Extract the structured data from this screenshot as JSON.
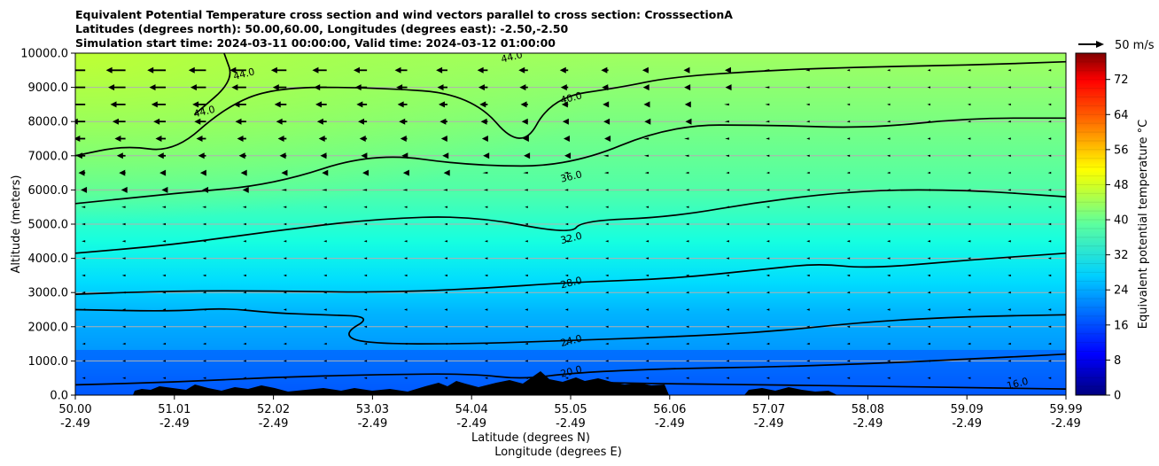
{
  "title_lines": [
    "Equivalent Potential Temperature cross section and wind vectors parallel to cross section: CrosssectionA",
    "Latitudes (degrees north): 50.00,60.00, Longitudes (degrees east): -2.50,-2.50",
    "Simulation start time: 2024-03-11 00:00:00, Valid time: 2024-03-12 01:00:00"
  ],
  "chart_data": {
    "type": "heatmap",
    "subtype": "filled contour cross section with contour lines and quiver vectors",
    "title": "Equivalent Potential Temperature cross section and wind vectors parallel to cross section: CrosssectionA",
    "xlabel": "Latitude (degrees N)",
    "xlabel2": "Longitude (degrees E)",
    "ylabel": "Altitude (meters)",
    "xlim": [
      50.0,
      59.99
    ],
    "ylim": [
      0,
      10000
    ],
    "grid": "horizontal",
    "x_ticks": [
      {
        "lat": "50.00",
        "lon": "-2.49"
      },
      {
        "lat": "51.01",
        "lon": "-2.49"
      },
      {
        "lat": "52.02",
        "lon": "-2.49"
      },
      {
        "lat": "53.03",
        "lon": "-2.49"
      },
      {
        "lat": "54.04",
        "lon": "-2.49"
      },
      {
        "lat": "55.05",
        "lon": "-2.49"
      },
      {
        "lat": "56.06",
        "lon": "-2.49"
      },
      {
        "lat": "57.07",
        "lon": "-2.49"
      },
      {
        "lat": "58.08",
        "lon": "-2.49"
      },
      {
        "lat": "59.09",
        "lon": "-2.49"
      },
      {
        "lat": "59.99",
        "lon": "-2.49"
      }
    ],
    "y_ticks": [
      "0.0",
      "1000.0",
      "2000.0",
      "3000.0",
      "4000.0",
      "5000.0",
      "6000.0",
      "7000.0",
      "8000.0",
      "9000.0",
      "10000.0"
    ],
    "colorbar": {
      "label": "Equivalent potential temperature $^\\circ$C",
      "ticks": [
        "0",
        "8",
        "16",
        "24",
        "32",
        "40",
        "48",
        "56",
        "64",
        "72"
      ],
      "range": [
        0,
        78
      ],
      "colormap": "jet"
    },
    "quiver_key": {
      "label": "50 m/s",
      "placement": "top-right"
    },
    "contours": [
      {
        "level": 16,
        "label": "16.0",
        "points": [
          [
            55.1,
            380
          ],
          [
            56.0,
            330
          ],
          [
            57.0,
            300
          ],
          [
            58.0,
            260
          ],
          [
            59.0,
            220
          ],
          [
            59.99,
            180
          ]
        ]
      },
      {
        "level": 20,
        "label": "20.0",
        "points": [
          [
            50.0,
            300
          ],
          [
            51.0,
            380
          ],
          [
            52.0,
            520
          ],
          [
            53.0,
            600
          ],
          [
            54.0,
            630
          ],
          [
            54.5,
            460
          ],
          [
            55.0,
            650
          ],
          [
            56.0,
            780
          ],
          [
            57.0,
            820
          ],
          [
            58.0,
            920
          ],
          [
            59.0,
            1050
          ],
          [
            59.99,
            1200
          ]
        ]
      },
      {
        "level": 24,
        "label": "24.0",
        "points": [
          [
            50.0,
            2500
          ],
          [
            51.0,
            2450
          ],
          [
            51.5,
            2550
          ],
          [
            52.0,
            2400
          ],
          [
            52.5,
            2350
          ],
          [
            53.0,
            2300
          ],
          [
            52.7,
            1800
          ],
          [
            52.9,
            1500
          ],
          [
            54.0,
            1500
          ],
          [
            55.0,
            1600
          ],
          [
            56.0,
            1700
          ],
          [
            57.0,
            1850
          ],
          [
            58.0,
            2150
          ],
          [
            59.0,
            2300
          ],
          [
            59.99,
            2350
          ]
        ]
      },
      {
        "level": 28,
        "label": "28.0",
        "points": [
          [
            50.0,
            2950
          ],
          [
            51.0,
            3050
          ],
          [
            52.0,
            3050
          ],
          [
            53.0,
            3000
          ],
          [
            54.0,
            3100
          ],
          [
            55.0,
            3300
          ],
          [
            56.0,
            3400
          ],
          [
            57.0,
            3700
          ],
          [
            57.5,
            3850
          ],
          [
            58.0,
            3700
          ],
          [
            59.0,
            3950
          ],
          [
            59.99,
            4150
          ]
        ]
      },
      {
        "level": 32,
        "label": "32.0",
        "points": [
          [
            50.0,
            4150
          ],
          [
            51.0,
            4400
          ],
          [
            52.0,
            4800
          ],
          [
            53.0,
            5150
          ],
          [
            54.0,
            5250
          ],
          [
            55.0,
            4700
          ],
          [
            55.1,
            5100
          ],
          [
            56.0,
            5200
          ],
          [
            57.0,
            5700
          ],
          [
            58.0,
            6000
          ],
          [
            59.0,
            6000
          ],
          [
            59.99,
            5800
          ]
        ]
      },
      {
        "level": 36,
        "label": "36.0",
        "points": [
          [
            50.0,
            5600
          ],
          [
            51.0,
            5900
          ],
          [
            52.0,
            6150
          ],
          [
            53.0,
            7100
          ],
          [
            54.0,
            6700
          ],
          [
            55.0,
            6700
          ],
          [
            56.0,
            7900
          ],
          [
            57.0,
            7900
          ],
          [
            58.0,
            7800
          ],
          [
            59.0,
            8100
          ],
          [
            59.99,
            8100
          ]
        ]
      },
      {
        "level": 40,
        "label": "40.0",
        "points": [
          [
            50.0,
            7000
          ],
          [
            50.5,
            7300
          ],
          [
            51.0,
            7100
          ],
          [
            51.5,
            8400
          ],
          [
            52.0,
            9000
          ],
          [
            53.0,
            9000
          ],
          [
            54.0,
            8800
          ],
          [
            54.5,
            7100
          ],
          [
            54.8,
            8700
          ],
          [
            55.5,
            9000
          ],
          [
            56.0,
            9300
          ],
          [
            57.0,
            9500
          ],
          [
            58.0,
            9600
          ],
          [
            59.0,
            9650
          ],
          [
            59.99,
            9750
          ]
        ]
      },
      {
        "level": 44,
        "label": "44.0",
        "points": [
          [
            51.2,
            8200
          ],
          [
            51.6,
            9200
          ],
          [
            51.5,
            10000
          ]
        ]
      }
    ],
    "contour_label_positions": [
      {
        "label": "44.0",
        "x": 54.4,
        "y": 9900
      },
      {
        "label": "44.0",
        "x": 51.3,
        "y": 8300
      },
      {
        "label": "44.0",
        "x": 51.7,
        "y": 9400
      },
      {
        "label": "40.0",
        "x": 55.0,
        "y": 8700
      },
      {
        "label": "36.0",
        "x": 55.0,
        "y": 6400
      },
      {
        "label": "32.0",
        "x": 55.0,
        "y": 4600
      },
      {
        "label": "28.0",
        "x": 55.0,
        "y": 3300
      },
      {
        "label": "24.0",
        "x": 55.0,
        "y": 1600
      },
      {
        "label": "20.0",
        "x": 55.0,
        "y": 700
      },
      {
        "label": "16.0",
        "x": 59.5,
        "y": 350
      }
    ]
  }
}
